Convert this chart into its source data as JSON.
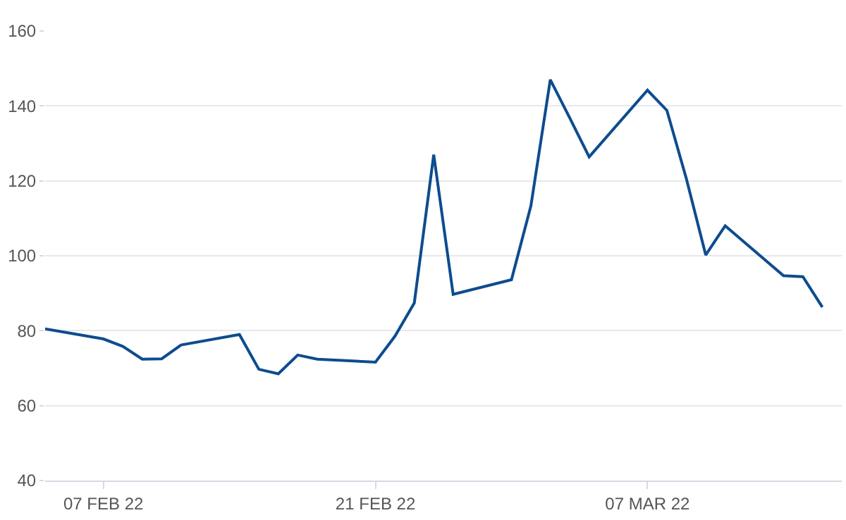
{
  "chart_data": {
    "type": "line",
    "x": [
      "2022-02-04",
      "2022-02-07",
      "2022-02-08",
      "2022-02-09",
      "2022-02-10",
      "2022-02-11",
      "2022-02-14",
      "2022-02-15",
      "2022-02-16",
      "2022-02-17",
      "2022-02-18",
      "2022-02-21",
      "2022-02-22",
      "2022-02-23",
      "2022-02-24",
      "2022-02-25",
      "2022-02-28",
      "2022-03-01",
      "2022-03-02",
      "2022-03-03",
      "2022-03-04",
      "2022-03-07",
      "2022-03-08",
      "2022-03-09",
      "2022-03-10",
      "2022-03-11",
      "2022-03-14",
      "2022-03-15",
      "2022-03-16"
    ],
    "series": [
      {
        "color": "#0d4c8f",
        "values": [
          80.5,
          77.8,
          75.8,
          72.4,
          72.5,
          76.2,
          79,
          69.7,
          68.5,
          73.5,
          72.4,
          71.6,
          78.5,
          87.4,
          127,
          89.7,
          93.6,
          113.3,
          147,
          136.8,
          126.4,
          144.2,
          138.8,
          120.6,
          100.2,
          108,
          94.7,
          94.4,
          86.3
        ]
      }
    ],
    "xlim": [
      "2022-02-04",
      "2022-03-17"
    ],
    "xticks": [
      {
        "value": "2022-02-07",
        "label": "07 FEB 22"
      },
      {
        "value": "2022-02-21",
        "label": "21 FEB 22"
      },
      {
        "value": "2022-03-07",
        "label": "07 MAR 22"
      }
    ],
    "ylim": [
      40,
      160
    ],
    "yticks": [
      40,
      60,
      80,
      100,
      120,
      140,
      160
    ],
    "grid": "y",
    "marker": "none",
    "line_style": "solid"
  }
}
